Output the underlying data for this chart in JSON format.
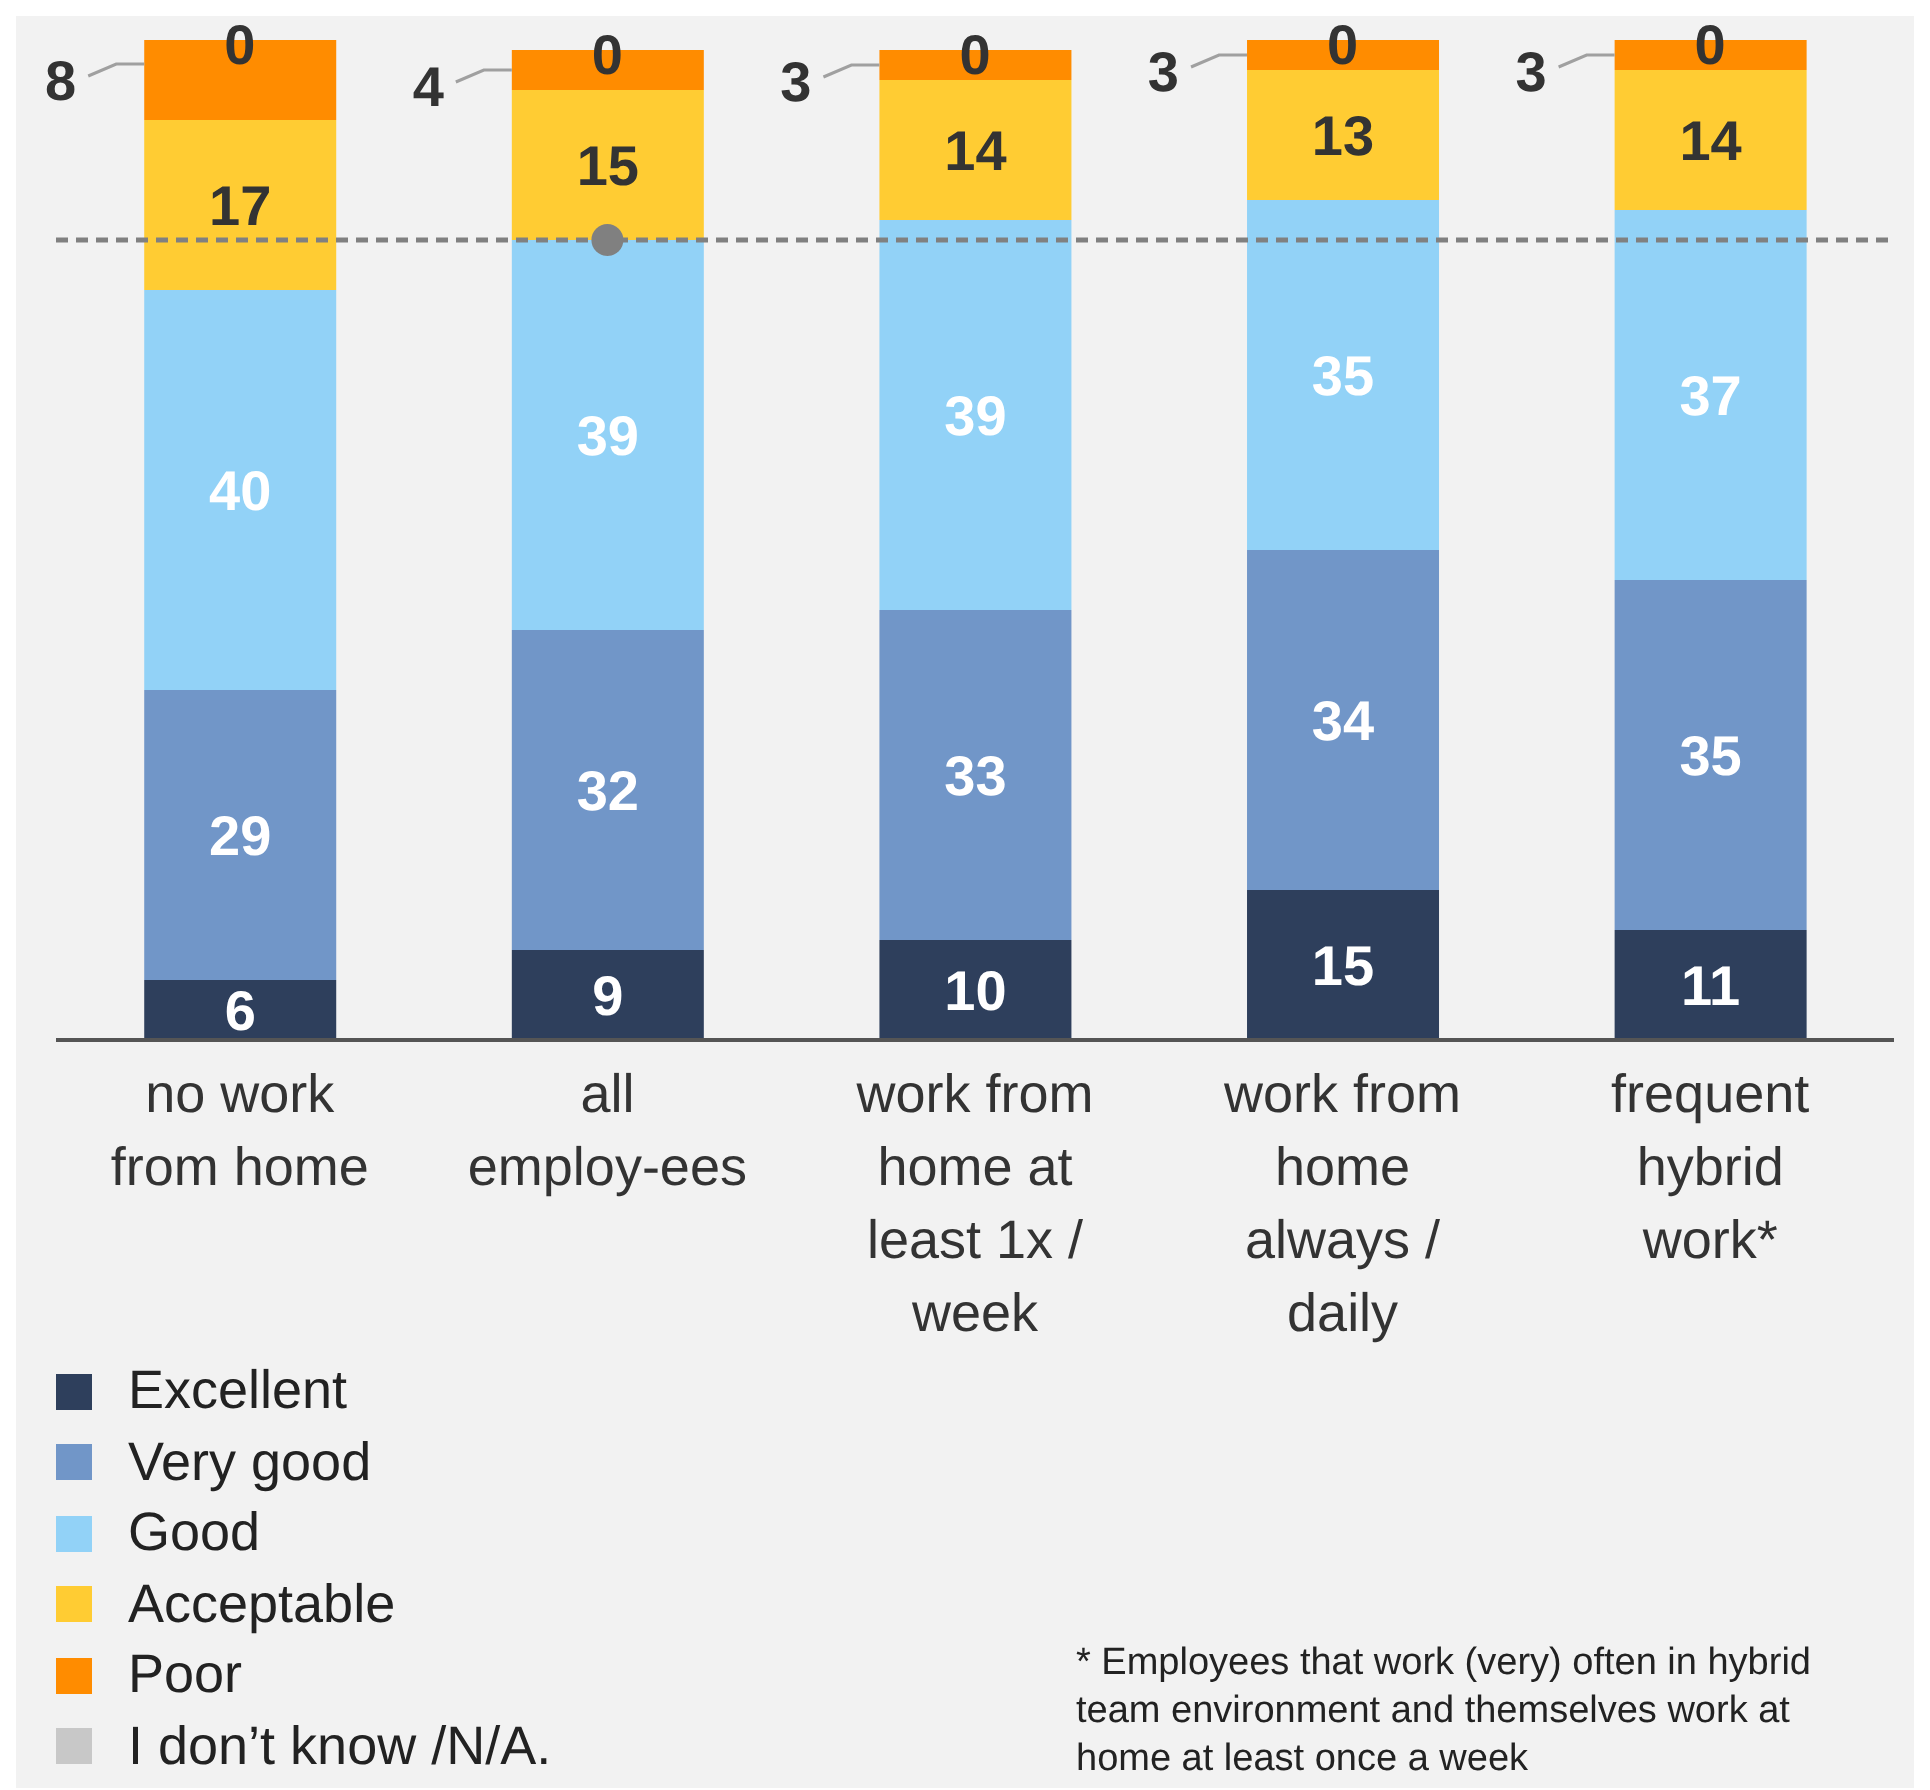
{
  "chart_data": {
    "type": "bar",
    "stacked": true,
    "data_labels": true,
    "tick_labels": "x",
    "legend": "bottom left",
    "categories": [
      "no work from home",
      "all employ-ees",
      "work from home at least 1x / week",
      "work from home always / daily",
      "frequent hybrid work*"
    ],
    "series": [
      {
        "name": "Excellent",
        "color": "#2e3f5c",
        "values": [
          6,
          9,
          10,
          15,
          11
        ]
      },
      {
        "name": "Very good",
        "color": "#7196c8",
        "values": [
          29,
          32,
          33,
          34,
          35
        ]
      },
      {
        "name": "Good",
        "color": "#92d2f7",
        "values": [
          40,
          39,
          39,
          35,
          37
        ]
      },
      {
        "name": "Acceptable",
        "color": "#ffcc33",
        "values": [
          17,
          15,
          14,
          13,
          14
        ]
      },
      {
        "name": "Poor",
        "color": "#ff8c00",
        "values": [
          8,
          4,
          3,
          3,
          3
        ]
      },
      {
        "name": "I don’t know /N/A.",
        "color": "#c8c8c8",
        "values": [
          0,
          0,
          0,
          0,
          0
        ]
      },
      {
        "type": "scatter",
        "color": "#808080",
        "x": [
          "all employ-ees"
        ],
        "values": [
          80
        ],
        "value_labels": [
          null
        ]
      }
    ],
    "ref_lines": [
      {
        "axis": "y",
        "value": 80,
        "color": "#808080",
        "line_style": "dashed"
      }
    ],
    "annotations": [
      "* Employees that work (very) often in hybrid team environment and themselves work at home at least once a week"
    ]
  }
}
